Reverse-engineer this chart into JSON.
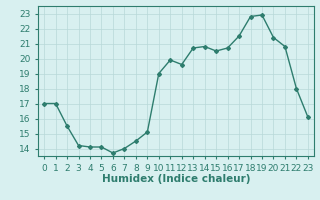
{
  "xlabel": "Humidex (Indice chaleur)",
  "x": [
    0,
    1,
    2,
    3,
    4,
    5,
    6,
    7,
    8,
    9,
    10,
    11,
    12,
    13,
    14,
    15,
    16,
    17,
    18,
    19,
    20,
    21,
    22,
    23
  ],
  "y": [
    17,
    17,
    15.5,
    14.2,
    14.1,
    14.1,
    13.7,
    14.0,
    14.5,
    15.1,
    19.0,
    19.9,
    19.6,
    20.7,
    20.8,
    20.5,
    20.7,
    21.5,
    22.8,
    22.9,
    21.4,
    20.8,
    18.0,
    16.1
  ],
  "line_color": "#2e7d6e",
  "marker": "D",
  "marker_size": 2,
  "line_width": 1.0,
  "bg_color": "#d8f0f0",
  "grid_color": "#b8d8d8",
  "tick_color": "#2e7d6e",
  "label_color": "#2e7d6e",
  "ylim": [
    13.5,
    23.5
  ],
  "yticks": [
    14,
    15,
    16,
    17,
    18,
    19,
    20,
    21,
    22,
    23
  ],
  "xlim": [
    -0.5,
    23.5
  ],
  "xticks": [
    0,
    1,
    2,
    3,
    4,
    5,
    6,
    7,
    8,
    9,
    10,
    11,
    12,
    13,
    14,
    15,
    16,
    17,
    18,
    19,
    20,
    21,
    22,
    23
  ],
  "tick_fontsize": 6.5,
  "xlabel_fontsize": 7.5
}
